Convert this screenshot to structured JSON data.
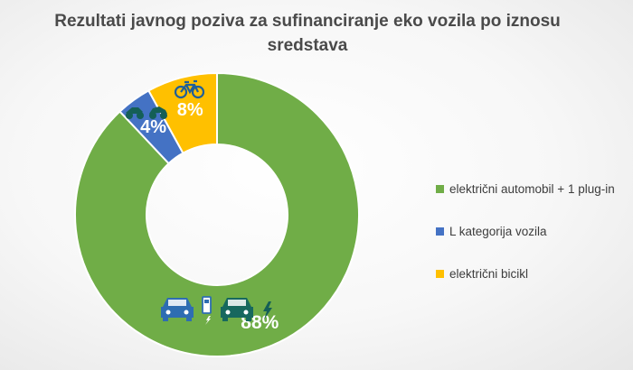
{
  "chart_data": {
    "type": "pie",
    "variant": "doughnut",
    "title": "Rezultati javnog poziva za sufinanciranje eko vozila po iznosu sredstava",
    "categories": [
      "električni automobil + 1 plug-in",
      "L kategorija vozila",
      "električni bicikl"
    ],
    "values": [
      88,
      4,
      8
    ],
    "data_labels": [
      "88%",
      "4%",
      "8%"
    ],
    "colors": [
      "#70ad47",
      "#4472c4",
      "#ffc000"
    ],
    "legend_position": "right",
    "slice_icons": [
      "electric-car-charging-icon",
      "motorcycle-icon",
      "bicycle-icon"
    ]
  }
}
